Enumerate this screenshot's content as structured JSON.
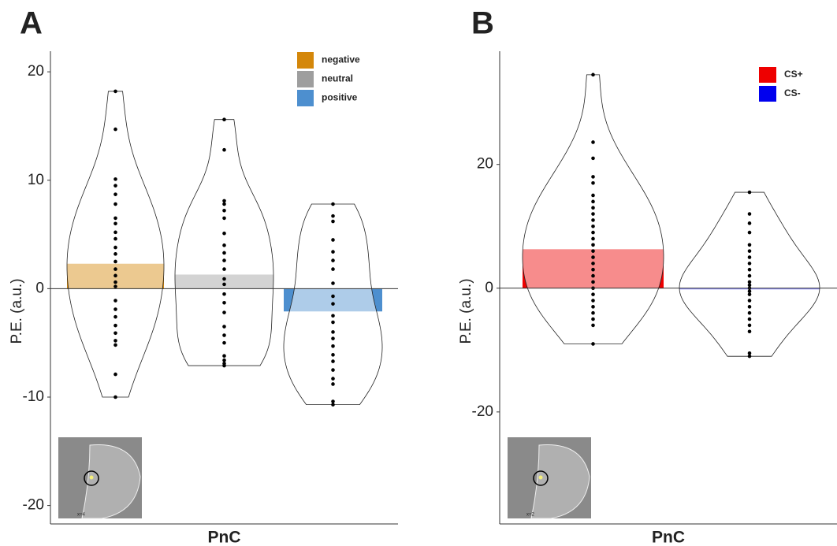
{
  "chart_data": [
    {
      "type": "bar",
      "panel": "A",
      "xlabel": "PnC",
      "ylabel": "P.E. (a.u.)",
      "inset_label": "x=4",
      "ylim": [
        -21.7,
        21.9
      ],
      "yticks": [
        -20,
        -10,
        0,
        10,
        20
      ],
      "legend": "top-right",
      "series": [
        {
          "name": "negative",
          "color": "#d4870a",
          "values": [
            2.3
          ],
          "points": [
            18.2,
            14.7,
            10.1,
            9.5,
            8.7,
            7.8,
            6.5,
            6.0,
            5.2,
            4.6,
            3.8,
            3.2,
            2.5,
            1.8,
            1.2,
            0.6,
            0.2,
            -1.1,
            -1.9,
            -2.6,
            -3.4,
            -4.1,
            -4.8,
            -5.2,
            -7.9,
            -10.0
          ]
        },
        {
          "name": "neutral",
          "color": "#9e9e9e",
          "values": [
            1.3
          ],
          "points": [
            15.6,
            12.8,
            8.1,
            7.8,
            7.2,
            6.5,
            5.1,
            4.0,
            3.3,
            2.6,
            1.8,
            0.9,
            0.4,
            -0.5,
            -1.3,
            -2.2,
            -3.5,
            -4.3,
            -5.0,
            -6.2,
            -6.6,
            -6.9,
            -7.1
          ]
        },
        {
          "name": "positive",
          "color": "#4d8fcf",
          "values": [
            -2.1
          ],
          "points": [
            7.8,
            6.7,
            6.2,
            4.5,
            3.4,
            2.6,
            1.8,
            0.5,
            -0.7,
            -1.4,
            -2.5,
            -3.1,
            -4.0,
            -4.6,
            -5.3,
            -6.1,
            -6.7,
            -7.5,
            -8.3,
            -8.8,
            -10.4,
            -10.7
          ]
        }
      ]
    },
    {
      "type": "bar",
      "panel": "B",
      "xlabel": "PnC",
      "ylabel": "P.E. (a.u.)",
      "inset_label": "x=2",
      "ylim": [
        -38.1,
        38.3
      ],
      "yticks": [
        -20,
        0,
        20
      ],
      "legend": "top-right",
      "series": [
        {
          "name": "CS+",
          "color": "#ee0000",
          "values": [
            6.3
          ],
          "points": [
            34.5,
            23.6,
            21.0,
            18.0,
            17.0,
            15.0,
            14.0,
            13.0,
            12.0,
            11.0,
            10.0,
            9.0,
            8.0,
            7.0,
            6.0,
            5.0,
            4.0,
            3.0,
            2.0,
            1.0,
            0,
            -1.0,
            -2.0,
            -3.0,
            -4.0,
            -5.0,
            -6.0,
            -9.0
          ]
        },
        {
          "name": "CS-",
          "color": "#0000ee",
          "values": [
            0
          ],
          "points": [
            15.5,
            12.0,
            10.5,
            9.0,
            7.0,
            6.0,
            5.0,
            4.0,
            3.0,
            2.0,
            1.0,
            0.5,
            0,
            -0.5,
            -1.0,
            -2.0,
            -3.0,
            -4.0,
            -5.0,
            -6.0,
            -7.0,
            -10.5,
            -11.0
          ]
        }
      ]
    }
  ]
}
